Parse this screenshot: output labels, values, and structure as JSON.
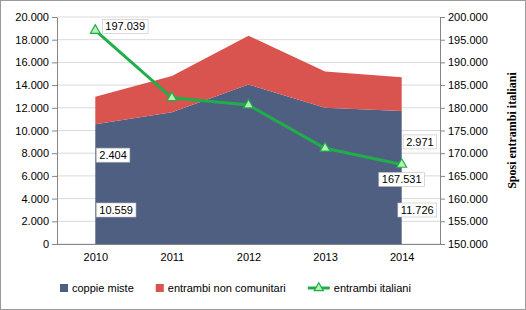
{
  "chart_data": {
    "type": "area",
    "stacked": true,
    "grid": true,
    "legend": "bottom",
    "data_labels": true,
    "categories": [
      "2010",
      "2011",
      "2012",
      "2013",
      "2014"
    ],
    "series": [
      {
        "name": "coppie miste",
        "type": "area",
        "color": "#4f5f82",
        "values": [
          10559,
          11600,
          14050,
          12000,
          11726
        ],
        "value_labels": [
          "10.559",
          null,
          null,
          null,
          "11.726"
        ]
      },
      {
        "name": "entrambi non comunitari",
        "type": "area",
        "color": "#d9534f",
        "values": [
          2404,
          3200,
          4300,
          3200,
          2971
        ],
        "value_labels": [
          "2.404",
          null,
          null,
          null,
          "2.971"
        ]
      },
      {
        "name": "entrambi italiani",
        "type": "line",
        "axis": "y2",
        "color": "#1fae4a",
        "marker": "triangle",
        "values": [
          197039,
          182200,
          180600,
          171100,
          167531
        ],
        "value_labels": [
          "197.039",
          null,
          null,
          null,
          "167.531"
        ]
      }
    ],
    "ylim": [
      0,
      20000
    ],
    "yticks": [
      0,
      {
        "value": 2000,
        "label": "2.000"
      },
      {
        "value": 4000,
        "label": "4.000"
      },
      {
        "value": 6000,
        "label": "6.000"
      },
      {
        "value": 8000,
        "label": "8.000"
      },
      {
        "value": 10000,
        "label": "10.000"
      },
      {
        "value": 12000,
        "label": "12.000"
      },
      {
        "value": 14000,
        "label": "14.000"
      },
      {
        "value": 16000,
        "label": "16.000"
      },
      {
        "value": 18000,
        "label": "18.000"
      },
      {
        "value": 20000,
        "label": "20.000"
      }
    ],
    "y2lim": [
      150000,
      200000
    ],
    "y2ticks": [
      {
        "value": 150000,
        "label": "150.000"
      },
      {
        "value": 155000,
        "label": "155.000"
      },
      {
        "value": 160000,
        "label": "160.000"
      },
      {
        "value": 165000,
        "label": "165.000"
      },
      {
        "value": 170000,
        "label": "170.000"
      },
      {
        "value": 175000,
        "label": "175.000"
      },
      {
        "value": 180000,
        "label": "180.000"
      },
      {
        "value": 185000,
        "label": "185.000"
      },
      {
        "value": 190000,
        "label": "190.000"
      },
      {
        "value": 195000,
        "label": "195.000"
      },
      {
        "value": 200000,
        "label": "200.000"
      }
    ],
    "y2_label": "Sposi entrambi italiani"
  }
}
